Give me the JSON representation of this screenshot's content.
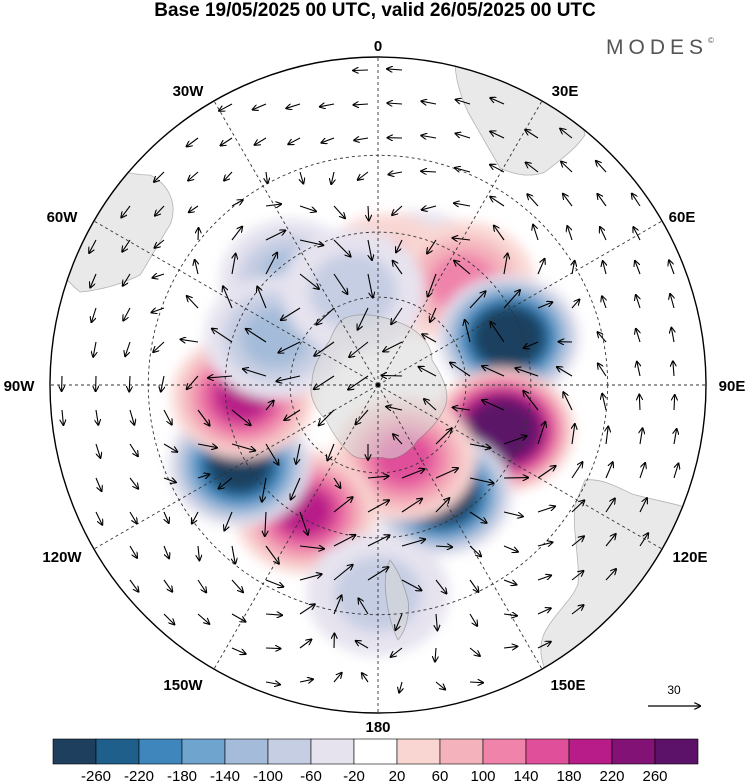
{
  "title": "Base 19/05/2025 00 UTC, valid 26/05/2025 00 UTC",
  "brand": "MODES",
  "brand_mark": "©",
  "longitude_labels": {
    "top": "0",
    "top_left": "30W",
    "top_right": "30E",
    "upper_left": "60W",
    "upper_right": "60E",
    "left": "90W",
    "right": "90E",
    "lower_left": "120W",
    "lower_right": "120E",
    "bottom_left": "150W",
    "bottom_right": "150E",
    "bottom": "180"
  },
  "reference_vector_label": "30",
  "colorbar": {
    "ticks": [
      "-260",
      "-220",
      "-180",
      "-140",
      "-100",
      "-60",
      "-20",
      "20",
      "60",
      "100",
      "140",
      "180",
      "220",
      "260"
    ],
    "colors": [
      "#1f3f5e",
      "#1f5f8c",
      "#3f86bd",
      "#6fa4cf",
      "#a4bcd9",
      "#c6cee3",
      "#e6e3ef",
      "#ffffff",
      "#f9d6d2",
      "#f4b3bc",
      "#ef83aa",
      "#e04f9a",
      "#b81c88",
      "#821276",
      "#5c1268"
    ]
  },
  "anomaly_centers": [
    {
      "sign": "negative",
      "level": 3,
      "lon": -40,
      "lat": -45
    },
    {
      "sign": "negative",
      "level": 3,
      "lon": 20,
      "lat": -50
    },
    {
      "sign": "positive",
      "level": 2,
      "lon": 5,
      "lat": -53
    },
    {
      "sign": "positive",
      "level": 3,
      "lon": 40,
      "lat": -46
    },
    {
      "sign": "negative",
      "level": 9,
      "lon": 70,
      "lat": -44
    },
    {
      "sign": "positive",
      "level": 9,
      "lon": 110,
      "lat": -46
    },
    {
      "sign": "negative",
      "level": 9,
      "lon": 150,
      "lat": -48
    },
    {
      "sign": "positive",
      "level": 4,
      "lon": 160,
      "lat": -63
    },
    {
      "sign": "positive",
      "level": 5,
      "lon": -150,
      "lat": -42
    },
    {
      "sign": "negative",
      "level": 8,
      "lon": -120,
      "lat": -38
    },
    {
      "sign": "positive",
      "level": 5,
      "lon": -95,
      "lat": -45
    },
    {
      "sign": "negative",
      "level": 3,
      "lon": -65,
      "lat": -52
    },
    {
      "sign": "negative",
      "level": 2,
      "lon": -15,
      "lat": -57
    },
    {
      "sign": "negative",
      "level": 2,
      "lon": 180,
      "lat": -25
    }
  ]
}
